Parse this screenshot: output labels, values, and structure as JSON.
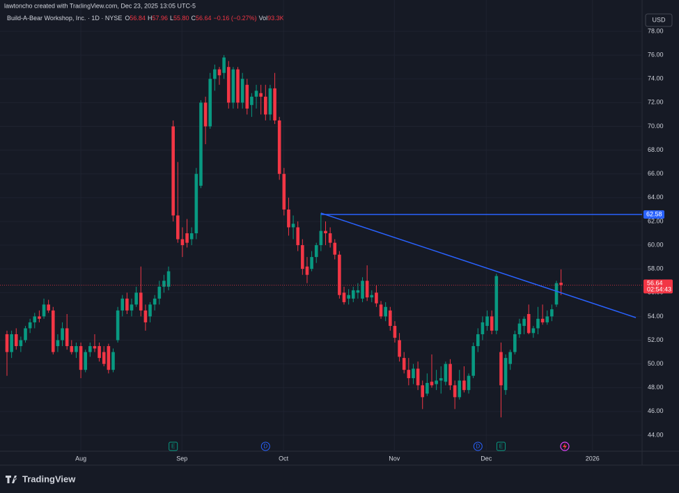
{
  "chart_data": {
    "type": "candlestick",
    "watermark": "lawtoncho created with TradingView.com, Dec 23, 2025 13:05 UTC-5",
    "title": "Build-A-Bear Workshop, Inc. · 1D · NYSE",
    "legend": {
      "o_label": "O",
      "open": "56.84",
      "h_label": "H",
      "high": "57.96",
      "l_label": "L",
      "low": "55.80",
      "c_label": "C",
      "close": "56.64",
      "change": "−0.16 (−0.27%)",
      "vol_label": "Vol",
      "volume": "93.3K"
    },
    "currency": "USD",
    "brand": "TradingView",
    "up_color": "#089981",
    "down_color": "#f23645",
    "ylim": [
      42.65,
      80.64
    ],
    "yticks": [
      {
        "value": 44,
        "label": "44.00"
      },
      {
        "value": 46,
        "label": "46.00"
      },
      {
        "value": 48,
        "label": "48.00"
      },
      {
        "value": 50,
        "label": "50.00"
      },
      {
        "value": 52,
        "label": "52.00"
      },
      {
        "value": 54,
        "label": "54.00"
      },
      {
        "value": 56,
        "label": "56.00"
      },
      {
        "value": 58,
        "label": "58.00"
      },
      {
        "value": 60,
        "label": "60.00"
      },
      {
        "value": 62,
        "label": "62.00"
      },
      {
        "value": 64,
        "label": "64.00"
      },
      {
        "value": 66,
        "label": "66.00"
      },
      {
        "value": 68,
        "label": "68.00"
      },
      {
        "value": 70,
        "label": "70.00"
      },
      {
        "value": 72,
        "label": "72.00"
      },
      {
        "value": 74,
        "label": "74.00"
      },
      {
        "value": 76,
        "label": "76.00"
      },
      {
        "value": 78,
        "label": "78.00"
      }
    ],
    "xlim": [
      -1.508,
      137.55
    ],
    "xticks": [
      {
        "value": 16,
        "label": "Aug"
      },
      {
        "value": 37.9,
        "label": "Sep"
      },
      {
        "value": 59.9,
        "label": "Oct"
      },
      {
        "value": 83.9,
        "label": "Nov"
      },
      {
        "value": 103.8,
        "label": "Dec"
      },
      {
        "value": 126.8,
        "label": "2026"
      }
    ],
    "ohlc": [
      [
        52.5,
        52.8,
        49,
        51
      ],
      [
        51,
        52.8,
        50.5,
        52.5
      ],
      [
        52.5,
        53,
        51.2,
        51.5
      ],
      [
        51.5,
        52.3,
        51,
        52
      ],
      [
        52,
        53.2,
        51.8,
        53
      ],
      [
        53,
        53.8,
        52.6,
        53.5
      ],
      [
        53.5,
        54.3,
        53,
        54
      ],
      [
        54,
        54.5,
        53.5,
        53.8
      ],
      [
        54,
        55.5,
        53.8,
        55
      ],
      [
        55,
        55.4,
        54.3,
        54.5
      ],
      [
        54.5,
        54.8,
        50.8,
        51
      ],
      [
        51.5,
        52.5,
        51,
        52
      ],
      [
        52,
        53.5,
        51.5,
        53
      ],
      [
        53,
        54.2,
        51.2,
        51.5
      ],
      [
        51.5,
        52,
        50.8,
        51
      ],
      [
        51,
        51.8,
        50.5,
        51.5
      ],
      [
        51.5,
        51.8,
        48.8,
        49.5
      ],
      [
        49.5,
        51.2,
        49.3,
        51
      ],
      [
        51,
        51.8,
        50.6,
        51.5
      ],
      [
        51.5,
        52.5,
        51,
        51.3
      ],
      [
        51.5,
        51.8,
        50.2,
        50.5
      ],
      [
        51,
        51.5,
        49.8,
        50
      ],
      [
        51.5,
        51.7,
        49.2,
        49.5
      ],
      [
        49.5,
        51.3,
        49.3,
        51
      ],
      [
        52,
        54.8,
        51.8,
        54.5
      ],
      [
        54.5,
        55.8,
        54,
        55.5
      ],
      [
        55.5,
        56,
        54.2,
        54.5
      ],
      [
        54.5,
        55.5,
        54,
        55
      ],
      [
        55,
        56.5,
        54.8,
        56
      ],
      [
        56,
        58.2,
        54,
        54.5
      ],
      [
        54.5,
        55,
        52.8,
        53.5
      ],
      [
        54,
        55.2,
        53.5,
        55
      ],
      [
        55,
        55.8,
        54.5,
        55.5
      ],
      [
        55.5,
        57,
        55,
        56.5
      ],
      [
        56.5,
        57.5,
        56,
        57
      ],
      [
        56.5,
        58.2,
        56.2,
        57.8
      ],
      [
        70,
        70.5,
        62,
        62.5
      ],
      [
        62.5,
        67,
        60.2,
        60.5
      ],
      [
        60.5,
        61.5,
        59,
        60
      ],
      [
        61,
        62.2,
        59.8,
        60.2
      ],
      [
        60.5,
        61.5,
        60,
        61
      ],
      [
        61,
        66.5,
        60.5,
        66
      ],
      [
        65,
        72.2,
        64.8,
        72
      ],
      [
        72,
        72.5,
        68.5,
        70
      ],
      [
        70,
        74.5,
        69.8,
        74
      ],
      [
        74,
        75.2,
        73,
        74.8
      ],
      [
        74.8,
        75,
        73.5,
        74.3
      ],
      [
        74.5,
        76,
        74,
        75.8
      ],
      [
        75,
        75.5,
        71.5,
        72
      ],
      [
        72,
        75,
        71.5,
        74.8
      ],
      [
        74.8,
        75,
        71.5,
        72
      ],
      [
        72,
        74.5,
        71.5,
        74
      ],
      [
        73.5,
        74,
        71,
        71.5
      ],
      [
        71.8,
        72.8,
        70.8,
        72.5
      ],
      [
        72.5,
        73.5,
        71.5,
        73
      ],
      [
        72.8,
        73.5,
        71,
        72.5
      ],
      [
        72.5,
        73.5,
        70.5,
        71
      ],
      [
        71,
        73.5,
        70.5,
        73.2
      ],
      [
        73.2,
        74.5,
        70.2,
        70.5
      ],
      [
        70.5,
        70.8,
        65.5,
        66
      ],
      [
        66,
        66.5,
        62.5,
        63
      ],
      [
        63,
        64,
        60.8,
        61.5
      ],
      [
        61.5,
        62.5,
        60.5,
        61.8
      ],
      [
        61.5,
        62,
        59.5,
        60
      ],
      [
        60,
        60.5,
        57.5,
        58
      ],
      [
        58.2,
        59,
        56.8,
        57.5
      ],
      [
        58,
        59.5,
        57.8,
        59
      ],
      [
        59,
        60.2,
        58.5,
        60
      ],
      [
        60,
        62.7,
        59.5,
        61.2
      ],
      [
        61.2,
        62,
        60,
        61
      ],
      [
        61,
        61.5,
        59.8,
        60.2
      ],
      [
        60.2,
        60.5,
        58.8,
        59.2
      ],
      [
        59.2,
        59.5,
        55.5,
        55.8
      ],
      [
        56,
        56.5,
        55,
        55.2
      ],
      [
        55.5,
        56.3,
        55,
        55.8
      ],
      [
        55.5,
        56.5,
        55.2,
        56.2
      ],
      [
        56,
        56.8,
        55.5,
        56.2
      ],
      [
        55.5,
        57.3,
        55.2,
        57
      ],
      [
        57,
        58.3,
        55.3,
        55.6
      ],
      [
        55.6,
        56.2,
        55.2,
        55.8
      ],
      [
        56,
        56.6,
        54.8,
        55.1
      ],
      [
        55,
        55.3,
        53.8,
        54
      ],
      [
        54,
        55.2,
        53.6,
        54.8
      ],
      [
        54.5,
        54.8,
        52.8,
        53.2
      ],
      [
        53.2,
        53.6,
        51.8,
        52.2
      ],
      [
        52,
        52.6,
        50.2,
        50.6
      ],
      [
        50.5,
        51,
        49.2,
        49.5
      ],
      [
        49.5,
        50.5,
        48.2,
        48.8
      ],
      [
        48.8,
        50,
        48.3,
        49.6
      ],
      [
        49.6,
        50.2,
        47.8,
        48.2
      ],
      [
        48.2,
        48.6,
        46.2,
        47.2
      ],
      [
        47.5,
        49.2,
        47.3,
        48.4
      ],
      [
        48.5,
        50.8,
        48,
        48.2
      ],
      [
        48.3,
        49.5,
        47.8,
        48.6
      ],
      [
        48.6,
        49.8,
        47.5,
        48.8
      ],
      [
        48.5,
        50.2,
        48.2,
        50
      ],
      [
        50,
        50.4,
        47.8,
        48.2
      ],
      [
        48.2,
        48.6,
        46.2,
        47.2
      ],
      [
        47.2,
        49.5,
        47,
        48.6
      ],
      [
        48.6,
        49.8,
        47.6,
        47.8
      ],
      [
        47.8,
        49.2,
        47.5,
        49
      ],
      [
        49,
        51.8,
        48.8,
        51.5
      ],
      [
        51.5,
        53,
        51,
        52.5
      ],
      [
        52.5,
        54,
        52,
        53.5
      ],
      [
        53.2,
        54.5,
        52.8,
        54
      ],
      [
        54,
        54.5,
        52.5,
        52.8
      ],
      [
        52.8,
        57.6,
        52.5,
        57.4
      ],
      [
        51,
        51.8,
        45.5,
        48.2
      ],
      [
        47.8,
        50.8,
        47.4,
        50.5
      ],
      [
        50,
        51.2,
        49.5,
        51
      ],
      [
        51,
        52.8,
        50.8,
        52.5
      ],
      [
        52.5,
        53.8,
        52.2,
        53.4
      ],
      [
        53.2,
        54,
        52.5,
        53.8
      ],
      [
        54.2,
        55,
        52.5,
        52.6
      ],
      [
        52.6,
        53.2,
        52.2,
        53
      ],
      [
        53,
        54.8,
        52.5,
        53.8
      ],
      [
        53.8,
        55,
        53.3,
        53.5
      ],
      [
        53.5,
        54.5,
        53.3,
        54
      ],
      [
        54,
        55,
        53.6,
        54.6
      ],
      [
        55,
        57,
        54.8,
        56.8
      ],
      [
        56.84,
        57.96,
        55.8,
        56.64
      ]
    ],
    "horizontal_line": {
      "start": 68,
      "value": 62.58,
      "label": "62.58",
      "color": "#2962ff"
    },
    "trend_line": {
      "x": [
        68,
        136.2
      ],
      "y": [
        62.7,
        53.9
      ],
      "color": "#2962ff"
    },
    "last_price": {
      "value": 56.64,
      "label": "56.64",
      "countdown": "02:54:43"
    },
    "events": [
      {
        "x": 36,
        "label": "E"
      },
      {
        "x": 56,
        "label": "D"
      },
      {
        "x": 102,
        "label": "D"
      },
      {
        "x": 107,
        "label": "E"
      }
    ]
  }
}
